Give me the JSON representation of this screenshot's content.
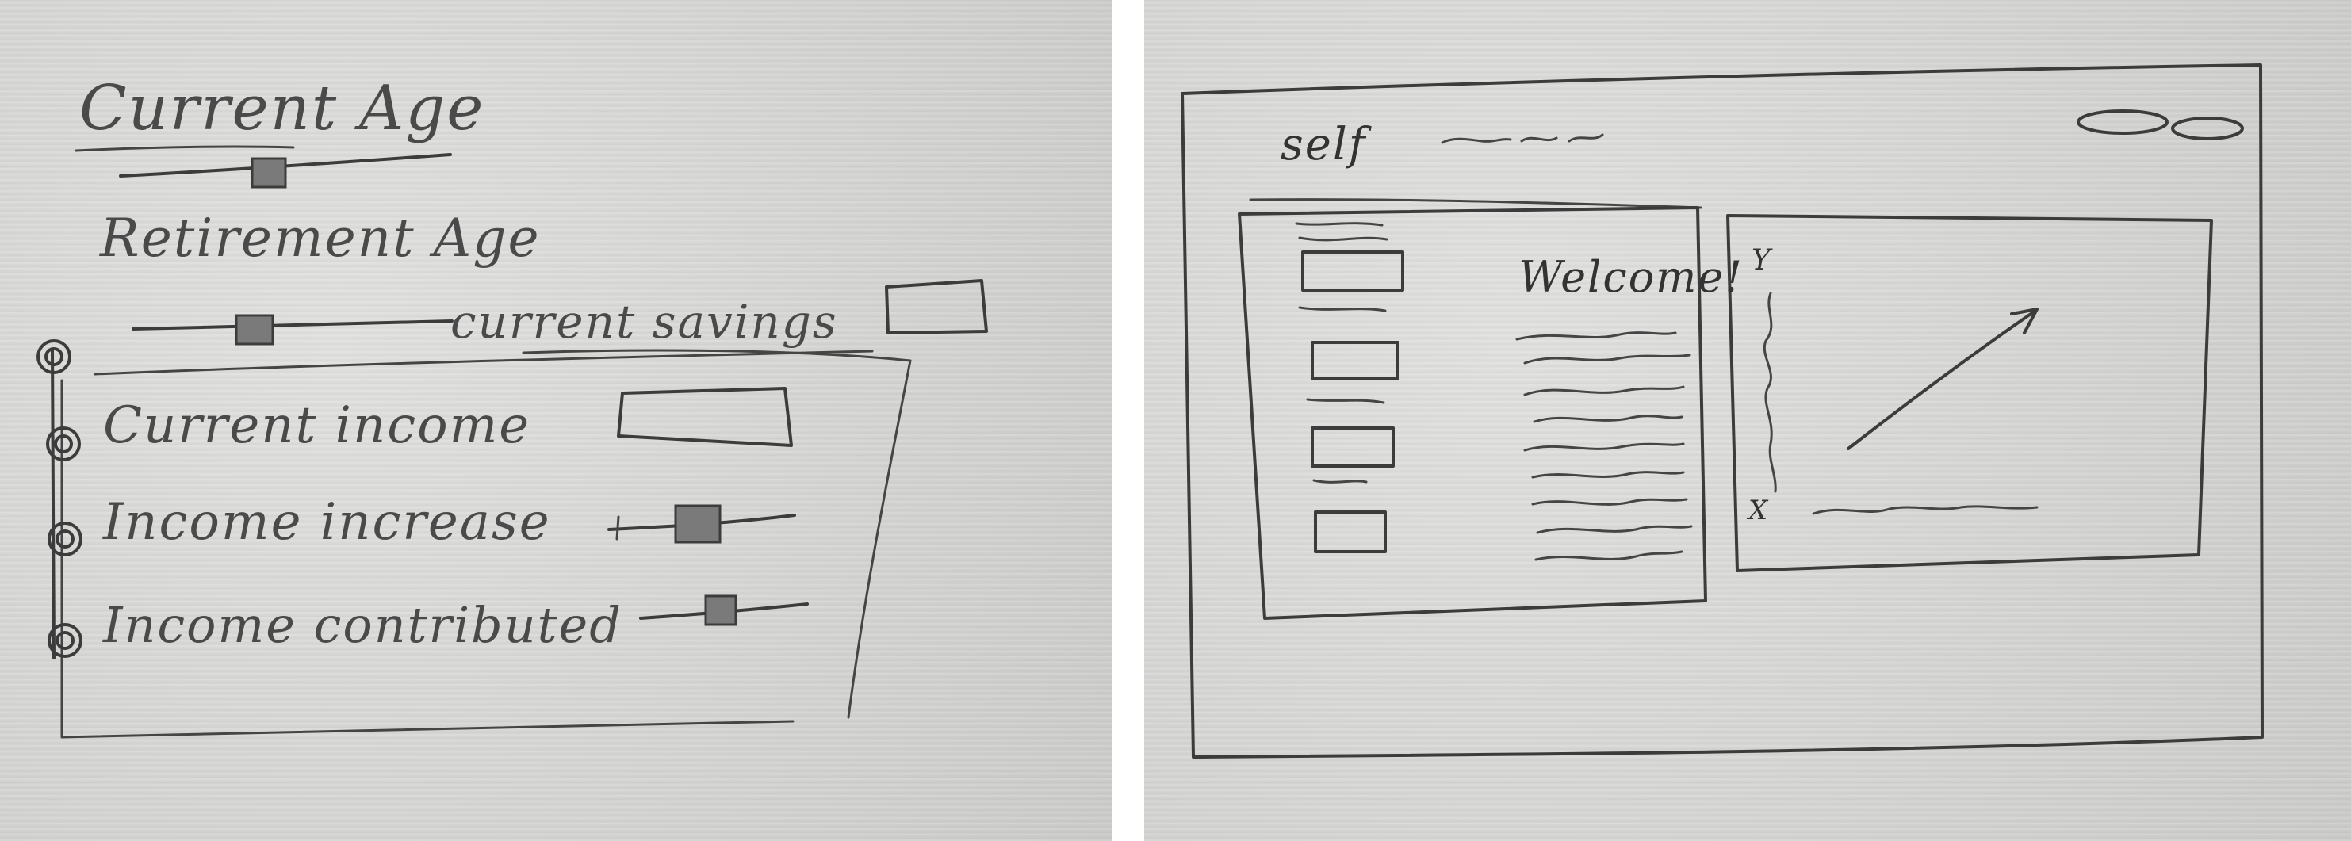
{
  "left_sketch": {
    "current_age_label": "Current Age",
    "retirement_age_label": "Retirement Age",
    "current_savings_label": "current savings",
    "current_income_label": "Current income",
    "income_increase_label": "Income increase",
    "income_contributed_label": "Income contributed"
  },
  "right_sketch": {
    "logo_text": "self",
    "welcome_text": "Welcome!",
    "chart_y_label": "Y",
    "chart_x_label": "X"
  },
  "colors": {
    "paper": "#d6d6d4",
    "pencil": "#3c3c3c"
  }
}
